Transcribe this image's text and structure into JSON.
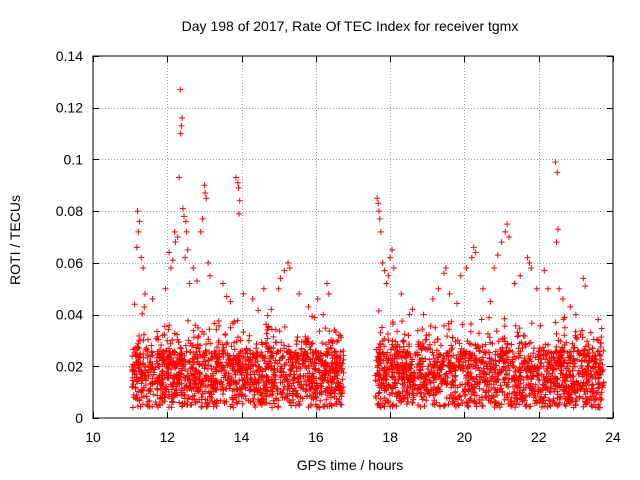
{
  "chart_data": {
    "type": "scatter",
    "title": "Day 198 of 2017, Rate Of TEC Index for receiver tgmx",
    "xlabel": "GPS time / hours",
    "ylabel": "ROTI / TECUs",
    "xlim": [
      10,
      24
    ],
    "ylim": [
      0,
      0.14
    ],
    "xticks": [
      10,
      12,
      14,
      16,
      18,
      20,
      22,
      24
    ],
    "yticks": [
      0,
      0.02,
      0.04,
      0.06,
      0.08,
      0.1,
      0.12,
      0.14
    ],
    "ytick_labels": [
      "0",
      "0.02",
      "0.04",
      "0.06",
      "0.08",
      "0.1",
      "0.12",
      "0.14"
    ],
    "grid": true,
    "marker": "+",
    "series": [
      {
        "name": "ROTI",
        "color": "#ff0000",
        "coverage_hours": [
          [
            11.05,
            16.75
          ],
          [
            17.6,
            23.75
          ]
        ],
        "points": [
          [
            11.2,
            0.08
          ],
          [
            11.25,
            0.076
          ],
          [
            11.22,
            0.072
          ],
          [
            11.18,
            0.066
          ],
          [
            11.3,
            0.062
          ],
          [
            11.35,
            0.058
          ],
          [
            11.4,
            0.048
          ],
          [
            11.12,
            0.044
          ],
          [
            11.6,
            0.046
          ],
          [
            11.95,
            0.05
          ],
          [
            12.05,
            0.064
          ],
          [
            12.1,
            0.058
          ],
          [
            12.15,
            0.061
          ],
          [
            12.2,
            0.072
          ],
          [
            12.22,
            0.068
          ],
          [
            12.28,
            0.07
          ],
          [
            12.35,
            0.127
          ],
          [
            12.4,
            0.116
          ],
          [
            12.38,
            0.113
          ],
          [
            12.36,
            0.11
          ],
          [
            12.32,
            0.093
          ],
          [
            12.42,
            0.081
          ],
          [
            12.45,
            0.078
          ],
          [
            12.5,
            0.076
          ],
          [
            12.52,
            0.072
          ],
          [
            12.55,
            0.065
          ],
          [
            12.48,
            0.062
          ],
          [
            12.6,
            0.052
          ],
          [
            12.7,
            0.058
          ],
          [
            12.8,
            0.053
          ],
          [
            12.9,
            0.072
          ],
          [
            12.95,
            0.077
          ],
          [
            13.0,
            0.09
          ],
          [
            13.02,
            0.087
          ],
          [
            13.05,
            0.085
          ],
          [
            13.1,
            0.06
          ],
          [
            13.15,
            0.055
          ],
          [
            13.5,
            0.052
          ],
          [
            13.6,
            0.047
          ],
          [
            13.7,
            0.045
          ],
          [
            13.85,
            0.093
          ],
          [
            13.9,
            0.091
          ],
          [
            13.92,
            0.089
          ],
          [
            13.95,
            0.084
          ],
          [
            13.93,
            0.079
          ],
          [
            14.05,
            0.048
          ],
          [
            14.3,
            0.046
          ],
          [
            14.6,
            0.05
          ],
          [
            14.8,
            0.042
          ],
          [
            15.0,
            0.05
          ],
          [
            15.05,
            0.054
          ],
          [
            15.15,
            0.057
          ],
          [
            15.25,
            0.06
          ],
          [
            15.3,
            0.058
          ],
          [
            15.55,
            0.048
          ],
          [
            15.8,
            0.043
          ],
          [
            16.05,
            0.046
          ],
          [
            16.2,
            0.04
          ],
          [
            16.3,
            0.052
          ],
          [
            16.35,
            0.048
          ],
          [
            16.5,
            0.034
          ],
          [
            16.6,
            0.03
          ],
          [
            17.65,
            0.085
          ],
          [
            17.68,
            0.083
          ],
          [
            17.7,
            0.08
          ],
          [
            17.72,
            0.077
          ],
          [
            17.75,
            0.072
          ],
          [
            17.8,
            0.06
          ],
          [
            17.85,
            0.057
          ],
          [
            17.9,
            0.052
          ],
          [
            17.95,
            0.055
          ],
          [
            18.0,
            0.062
          ],
          [
            18.05,
            0.065
          ],
          [
            18.1,
            0.058
          ],
          [
            18.3,
            0.048
          ],
          [
            18.6,
            0.042
          ],
          [
            18.9,
            0.04
          ],
          [
            19.15,
            0.046
          ],
          [
            19.3,
            0.05
          ],
          [
            19.45,
            0.056
          ],
          [
            19.5,
            0.058
          ],
          [
            19.6,
            0.048
          ],
          [
            19.9,
            0.055
          ],
          [
            20.05,
            0.058
          ],
          [
            20.2,
            0.062
          ],
          [
            20.25,
            0.066
          ],
          [
            20.3,
            0.064
          ],
          [
            20.5,
            0.05
          ],
          [
            20.7,
            0.045
          ],
          [
            20.8,
            0.058
          ],
          [
            20.9,
            0.063
          ],
          [
            21.0,
            0.068
          ],
          [
            21.1,
            0.072
          ],
          [
            21.15,
            0.075
          ],
          [
            21.2,
            0.07
          ],
          [
            21.35,
            0.052
          ],
          [
            21.5,
            0.055
          ],
          [
            21.7,
            0.062
          ],
          [
            21.75,
            0.06
          ],
          [
            21.8,
            0.058
          ],
          [
            21.95,
            0.05
          ],
          [
            22.15,
            0.057
          ],
          [
            22.25,
            0.05
          ],
          [
            22.45,
            0.099
          ],
          [
            22.5,
            0.095
          ],
          [
            22.52,
            0.073
          ],
          [
            22.48,
            0.068
          ],
          [
            22.55,
            0.05
          ],
          [
            22.65,
            0.046
          ],
          [
            22.85,
            0.043
          ],
          [
            23.0,
            0.04
          ],
          [
            23.2,
            0.054
          ],
          [
            23.25,
            0.051
          ],
          [
            23.4,
            0.033
          ],
          [
            23.6,
            0.03
          ]
        ]
      }
    ]
  }
}
